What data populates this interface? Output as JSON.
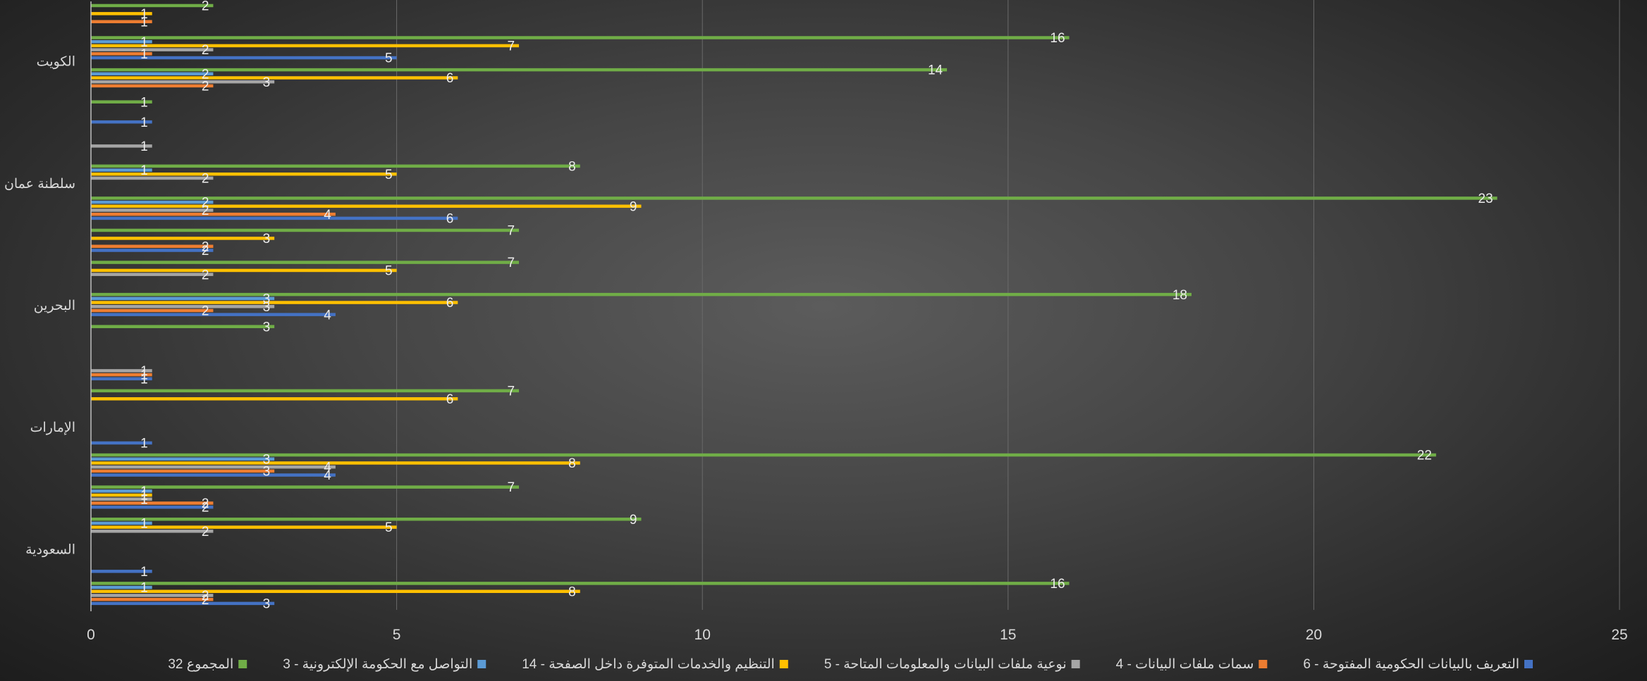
{
  "chart_data": {
    "type": "bar",
    "orientation": "horizontal",
    "xlim": [
      0,
      25
    ],
    "x_ticks": [
      "0",
      "5",
      "10",
      "15",
      "20",
      "25"
    ],
    "grid": true,
    "legend_position": "bottom",
    "countries": [
      "السعودية",
      "الإمارات",
      "البحرين",
      "سلطنة عمان",
      "الكويت"
    ],
    "series": [
      {
        "name": "التعريف بالبيانات الحكومية المفتوحة - 6",
        "color": "#4472c4"
      },
      {
        "name": "سمات ملفات البيانات - 4",
        "color": "#ed7d31"
      },
      {
        "name": "نوعية ملفات البيانات والمعلومات المتاحة - 5",
        "color": "#a5a5a5"
      },
      {
        "name": "التنظيم والخدمات المتوفرة داخل الصفحة - 14",
        "color": "#ffc000"
      },
      {
        "name": "التواصل مع الحكومة الإلكترونية - 3",
        "color": "#5b9bd5"
      },
      {
        "name": "المجموع 32",
        "color": "#70ad47"
      }
    ],
    "groups": [
      {
        "values": [
          3,
          2,
          2,
          8,
          1,
          16
        ]
      },
      {
        "values": [
          1,
          null,
          null,
          null,
          null,
          null
        ]
      },
      {
        "values": [
          null,
          null,
          2,
          5,
          1,
          9
        ]
      },
      {
        "values": [
          2,
          2,
          1,
          1,
          1,
          7
        ]
      },
      {
        "values": [
          4,
          3,
          4,
          8,
          3,
          22
        ]
      },
      {
        "values": [
          1,
          null,
          null,
          null,
          null,
          null
        ]
      },
      {
        "values": [
          null,
          null,
          null,
          6,
          null,
          7
        ]
      },
      {
        "values": [
          1,
          1,
          1,
          null,
          null,
          null
        ]
      },
      {
        "values": [
          null,
          null,
          null,
          null,
          null,
          3
        ]
      },
      {
        "values": [
          4,
          2,
          3,
          6,
          3,
          18
        ]
      },
      {
        "values": [
          null,
          null,
          2,
          5,
          null,
          7
        ]
      },
      {
        "values": [
          2,
          2,
          null,
          3,
          null,
          7
        ]
      },
      {
        "values": [
          6,
          4,
          2,
          9,
          2,
          23
        ]
      },
      {
        "values": [
          null,
          null,
          2,
          5,
          1,
          8
        ]
      },
      {
        "values": [
          null,
          null,
          1,
          null,
          null,
          null
        ]
      },
      {
        "values": [
          1,
          null,
          null,
          null,
          null,
          1
        ]
      },
      {
        "values": [
          null,
          2,
          3,
          6,
          2,
          14
        ]
      },
      {
        "values": [
          5,
          1,
          2,
          7,
          1,
          16
        ]
      },
      {
        "values": [
          null,
          1,
          null,
          1,
          null,
          2
        ]
      }
    ]
  }
}
